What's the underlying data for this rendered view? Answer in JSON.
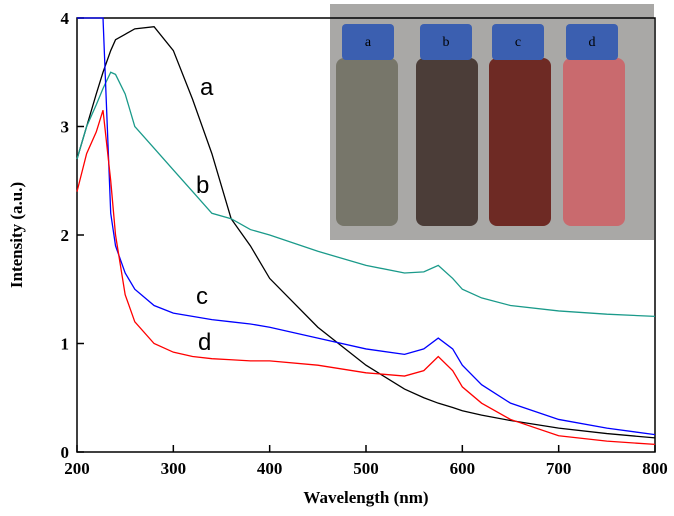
{
  "chart_data": {
    "type": "line",
    "xlabel": "Wavelength (nm)",
    "ylabel": "Intensity (a.u.)",
    "xlim": [
      200,
      800
    ],
    "ylim": [
      0,
      4
    ],
    "xticks": [
      200,
      300,
      400,
      500,
      600,
      700,
      800
    ],
    "yticks": [
      0,
      1,
      2,
      3,
      4
    ],
    "x": [
      200,
      210,
      220,
      227,
      235,
      240,
      250,
      260,
      280,
      300,
      320,
      340,
      360,
      380,
      400,
      450,
      500,
      540,
      560,
      575,
      590,
      600,
      620,
      650,
      700,
      750,
      800
    ],
    "series": [
      {
        "name": "a",
        "color": "#000000",
        "values": [
          2.7,
          3.0,
          3.3,
          3.5,
          3.7,
          3.8,
          3.85,
          3.9,
          3.92,
          3.7,
          3.25,
          2.75,
          2.15,
          1.9,
          1.6,
          1.15,
          0.8,
          0.58,
          0.5,
          0.45,
          0.41,
          0.38,
          0.34,
          0.29,
          0.22,
          0.17,
          0.13
        ]
      },
      {
        "name": "b",
        "color": "#1a9a8a",
        "values": [
          2.7,
          3.0,
          3.2,
          3.35,
          3.5,
          3.48,
          3.3,
          3.0,
          2.8,
          2.6,
          2.4,
          2.2,
          2.15,
          2.05,
          2.0,
          1.85,
          1.72,
          1.65,
          1.66,
          1.72,
          1.6,
          1.5,
          1.42,
          1.35,
          1.3,
          1.27,
          1.25
        ]
      },
      {
        "name": "c",
        "color": "#0000ff",
        "values": [
          4,
          4,
          4,
          4,
          2.2,
          1.9,
          1.65,
          1.5,
          1.35,
          1.28,
          1.25,
          1.22,
          1.2,
          1.18,
          1.15,
          1.05,
          0.95,
          0.9,
          0.95,
          1.05,
          0.95,
          0.8,
          0.62,
          0.45,
          0.3,
          0.22,
          0.16
        ]
      },
      {
        "name": "d",
        "color": "#ff0000",
        "values": [
          2.4,
          2.75,
          2.95,
          3.15,
          2.5,
          2.0,
          1.45,
          1.2,
          1.0,
          0.92,
          0.88,
          0.86,
          0.85,
          0.84,
          0.84,
          0.8,
          0.73,
          0.7,
          0.75,
          0.88,
          0.75,
          0.6,
          0.45,
          0.3,
          0.15,
          0.1,
          0.07
        ]
      }
    ],
    "inset_labels": [
      "a",
      "b",
      "c",
      "d"
    ]
  }
}
